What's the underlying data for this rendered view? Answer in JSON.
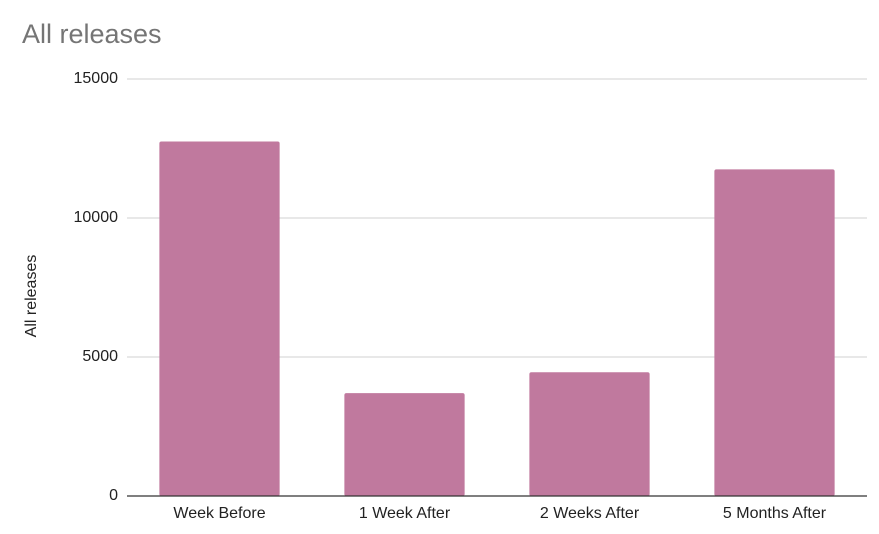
{
  "chart_data": {
    "type": "bar",
    "title": "All releases",
    "y_label": "All releases",
    "categories": [
      "Week Before",
      "1 Week After",
      "2 Weeks After",
      "5 Months After"
    ],
    "values": [
      12750,
      3700,
      4450,
      11750
    ],
    "color": "#c0799e",
    "ylim": [
      0,
      15000
    ],
    "yticks": [
      0,
      5000,
      10000,
      15000
    ],
    "grid": true
  }
}
